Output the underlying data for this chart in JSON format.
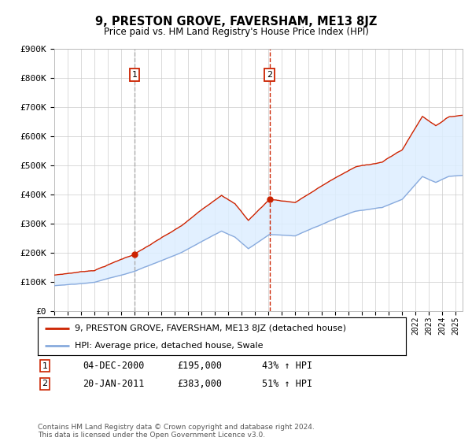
{
  "title": "9, PRESTON GROVE, FAVERSHAM, ME13 8JZ",
  "subtitle": "Price paid vs. HM Land Registry's House Price Index (HPI)",
  "legend_line1": "9, PRESTON GROVE, FAVERSHAM, ME13 8JZ (detached house)",
  "legend_line2": "HPI: Average price, detached house, Swale",
  "sale1_date": "04-DEC-2000",
  "sale1_price": "£195,000",
  "sale1_hpi": "43% ↑ HPI",
  "sale1_year": 2001.0,
  "sale1_value": 195000,
  "sale2_date": "20-JAN-2011",
  "sale2_price": "£383,000",
  "sale2_hpi": "51% ↑ HPI",
  "sale2_year": 2011.08,
  "sale2_value": 383000,
  "footer": "Contains HM Land Registry data © Crown copyright and database right 2024.\nThis data is licensed under the Open Government Licence v3.0.",
  "red_color": "#cc2200",
  "blue_color": "#88aadd",
  "shade_color": "#ddeeff",
  "ylim_max": 900000,
  "xlim_start": 1995.0,
  "xlim_end": 2025.5,
  "background_color": "#ffffff",
  "grid_color": "#cccccc"
}
